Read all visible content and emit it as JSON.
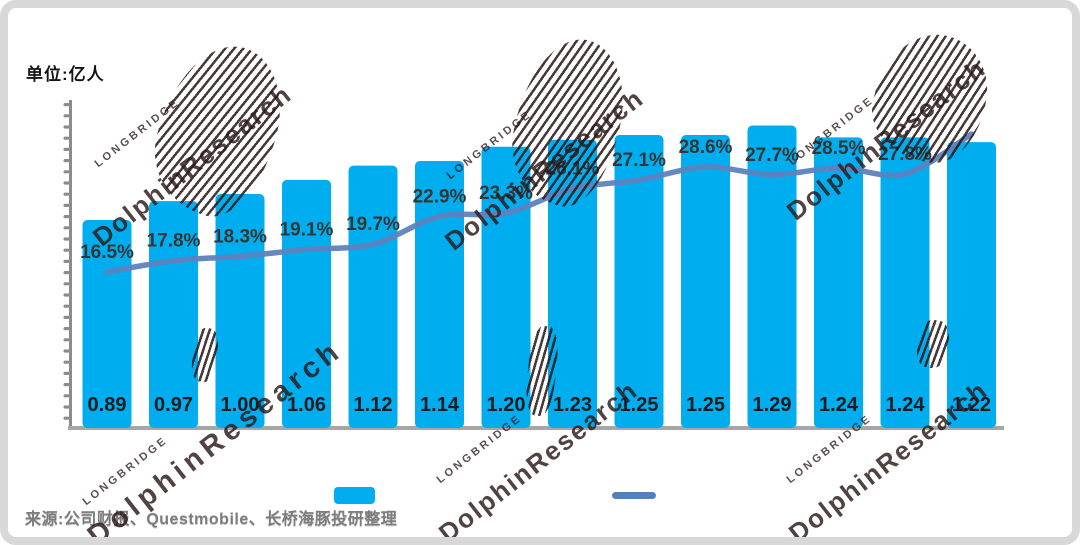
{
  "unit_label": "单位:亿人",
  "source_note": "来源:公司财报、Questmobile、长桥海豚投研整理",
  "watermark": {
    "brand_small": "LONGBRIDGE",
    "brand_large": "DolphinResearch"
  },
  "colors": {
    "bar": "#00AEEF",
    "line": "#5E82BE",
    "legend_line": "#5580BE",
    "axis": "#8c8c8c",
    "x_axis": "#a6a6a6",
    "bar_value_label": "#1c1c1c",
    "pct_label": "#363636"
  },
  "legend": {
    "bar_label": "",
    "line_label": ""
  },
  "chart_data": {
    "type": "bar",
    "title": "",
    "subtitle": "",
    "unit": "亿人",
    "x_axis_labels_visible": false,
    "y_axis_tick_labels_visible": false,
    "grid": false,
    "legend_position": "bottom",
    "categories": [
      "",
      "",
      "",
      "",
      "",
      "",
      "",
      "",
      "",
      "",
      "",
      "",
      "",
      ""
    ],
    "series": [
      {
        "name": "bar-series",
        "type": "bar",
        "color": "#00AEEF",
        "values": [
          0.89,
          0.97,
          1.0,
          1.06,
          1.12,
          1.14,
          1.2,
          1.23,
          1.25,
          1.25,
          1.29,
          1.24,
          1.24,
          1.22
        ]
      },
      {
        "name": "line-series-yoy-pct",
        "type": "line",
        "color": "#5E82BE",
        "values_pct": [
          16.5,
          17.8,
          18.3,
          19.1,
          19.7,
          22.9,
          23.3,
          26.1,
          27.1,
          28.6,
          27.7,
          28.5,
          27.8,
          null
        ],
        "last_label_obscured": true
      }
    ]
  }
}
